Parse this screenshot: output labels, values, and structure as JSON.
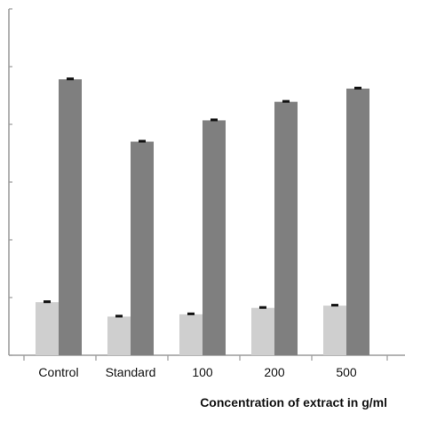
{
  "chart_data": {
    "type": "bar",
    "title": "",
    "xlabel": "Concentration of extract in    g/ml",
    "ylabel": "",
    "categories": [
      "Control",
      "Standard",
      "100",
      "200",
      "500"
    ],
    "series": [
      {
        "values": [
          0.92,
          0.67,
          0.71,
          0.82,
          0.86
        ]
      },
      {
        "values": [
          4.78,
          3.7,
          4.07,
          4.39,
          4.62
        ]
      }
    ],
    "ylim": [
      0,
      6
    ],
    "y_ticks_shown": false,
    "grid": false,
    "legend": "none",
    "colors": {
      "series": [
        "#cfcfcf",
        "#7f7f7f"
      ],
      "axis": "#9a9a9a",
      "cap": "#111111"
    }
  }
}
